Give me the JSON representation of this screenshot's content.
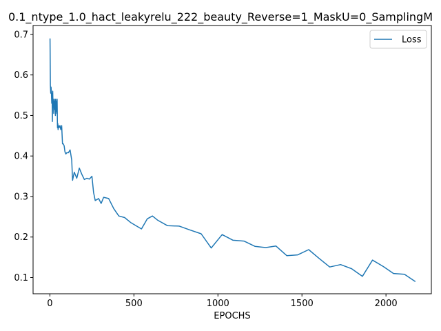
{
  "chart_data": {
    "type": "line",
    "title": "0.1_ntype_1.0_hact_leakyrelu_222_beauty_Reverse=1_MaskU=0_SamplingM",
    "xlabel": "EPOCHS",
    "ylabel": "",
    "xlim": [
      -100,
      2270
    ],
    "ylim": [
      0.06,
      0.722
    ],
    "xticks": [
      0,
      500,
      1000,
      1500,
      2000
    ],
    "yticks": [
      0.1,
      0.2,
      0.3,
      0.4,
      0.5,
      0.6,
      0.7
    ],
    "xtick_labels": [
      "0",
      "500",
      "1000",
      "1500",
      "2000"
    ],
    "ytick_labels": [
      "0.1",
      "0.2",
      "0.3",
      "0.4",
      "0.5",
      "0.6",
      "0.7"
    ],
    "legend_position": "upper-right",
    "series": [
      {
        "name": "Loss",
        "color": "#1f77b4",
        "x": [
          1,
          3,
          5,
          7,
          9,
          11,
          13,
          15,
          17,
          19,
          21,
          23,
          25,
          27,
          29,
          31,
          33,
          35,
          37,
          39,
          41,
          43,
          45,
          47,
          49,
          51,
          55,
          60,
          65,
          70,
          75,
          80,
          85,
          90,
          95,
          100,
          110,
          120,
          130,
          135,
          145,
          160,
          175,
          190,
          205,
          220,
          235,
          250,
          260,
          270,
          290,
          305,
          320,
          350,
          380,
          410,
          445,
          480,
          545,
          580,
          610,
          640,
          700,
          770,
          830,
          900,
          960,
          1025,
          1090,
          1155,
          1220,
          1285,
          1345,
          1410,
          1475,
          1540,
          1600,
          1665,
          1730,
          1795,
          1860,
          1920,
          1985,
          2045,
          2110,
          2175
        ],
        "y": [
          0.69,
          0.575,
          0.555,
          0.57,
          0.555,
          0.53,
          0.555,
          0.485,
          0.56,
          0.52,
          0.54,
          0.505,
          0.535,
          0.515,
          0.54,
          0.525,
          0.5,
          0.54,
          0.51,
          0.535,
          0.505,
          0.54,
          0.47,
          0.48,
          0.465,
          0.475,
          0.47,
          0.475,
          0.465,
          0.475,
          0.43,
          0.43,
          0.425,
          0.41,
          0.405,
          0.408,
          0.408,
          0.415,
          0.39,
          0.34,
          0.36,
          0.345,
          0.37,
          0.355,
          0.342,
          0.345,
          0.343,
          0.35,
          0.31,
          0.29,
          0.295,
          0.283,
          0.298,
          0.295,
          0.27,
          0.252,
          0.248,
          0.236,
          0.22,
          0.245,
          0.252,
          0.242,
          0.228,
          0.227,
          0.218,
          0.208,
          0.173,
          0.206,
          0.192,
          0.19,
          0.177,
          0.174,
          0.178,
          0.154,
          0.156,
          0.169,
          0.148,
          0.126,
          0.132,
          0.122,
          0.103,
          0.143,
          0.127,
          0.11,
          0.108,
          0.09
        ]
      }
    ]
  }
}
